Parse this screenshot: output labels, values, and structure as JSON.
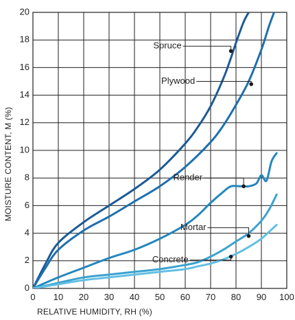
{
  "chart_data": {
    "type": "line",
    "xlabel": "RELATIVE HUMIDITY, RH (%)",
    "ylabel": "MOISTURE CONTENT, M (%)",
    "xlim": [
      0,
      100
    ],
    "ylim": [
      0,
      20
    ],
    "x_ticks": [
      "0",
      "10",
      "20",
      "30",
      "40",
      "50",
      "60",
      "70",
      "80",
      "90",
      "100"
    ],
    "y_ticks": [
      "0",
      "2",
      "4",
      "6",
      "8",
      "10",
      "12",
      "14",
      "16",
      "18",
      "20"
    ],
    "grid": true,
    "series": [
      {
        "name": "Spruce",
        "color": "#1b5a96",
        "x": [
          0,
          5,
          10,
          20,
          30,
          40,
          50,
          60,
          65,
          70,
          75,
          78,
          80,
          83,
          85
        ],
        "y": [
          0,
          1.8,
          3.3,
          4.8,
          6.0,
          7.2,
          8.6,
          10.5,
          11.7,
          13.2,
          15.2,
          16.7,
          17.8,
          19.3,
          20.0
        ]
      },
      {
        "name": "Plywood",
        "color": "#1d6fae",
        "x": [
          0,
          5,
          10,
          20,
          30,
          40,
          50,
          60,
          70,
          75,
          80,
          85,
          90,
          93,
          95
        ],
        "y": [
          0,
          1.5,
          2.8,
          4.2,
          5.2,
          6.3,
          7.4,
          8.8,
          10.6,
          11.8,
          13.3,
          15.0,
          17.3,
          19.0,
          20.0
        ]
      },
      {
        "name": "Render",
        "color": "#2487bd",
        "x": [
          0,
          10,
          20,
          30,
          40,
          50,
          60,
          65,
          70,
          75,
          78,
          82,
          85,
          88,
          90,
          92,
          94,
          96
        ],
        "y": [
          0,
          0.8,
          1.5,
          2.2,
          2.8,
          3.6,
          4.6,
          5.3,
          6.2,
          7.0,
          7.4,
          7.4,
          7.4,
          7.6,
          8.2,
          7.8,
          9.2,
          9.8
        ]
      },
      {
        "name": "Mortar",
        "color": "#3aa3d0",
        "x": [
          0,
          10,
          20,
          30,
          40,
          50,
          60,
          65,
          70,
          75,
          80,
          85,
          90,
          93,
          96
        ],
        "y": [
          0,
          0.4,
          0.8,
          1.0,
          1.2,
          1.4,
          1.7,
          1.9,
          2.3,
          2.8,
          3.4,
          4.0,
          4.9,
          5.7,
          6.8
        ]
      },
      {
        "name": "Concrete",
        "color": "#62bfe3",
        "x": [
          0,
          10,
          20,
          30,
          40,
          50,
          60,
          65,
          70,
          75,
          80,
          85,
          90,
          93,
          96
        ],
        "y": [
          0,
          0.3,
          0.6,
          0.8,
          1.0,
          1.2,
          1.4,
          1.6,
          1.8,
          2.1,
          2.5,
          3.0,
          3.6,
          4.1,
          4.6
        ]
      }
    ],
    "annotations": [
      {
        "text": "Spruce",
        "x": 78,
        "y": 17.2
      },
      {
        "text": "Plywood",
        "x": 86,
        "y": 14.8
      },
      {
        "text": "Render",
        "x": 83,
        "y": 7.4
      },
      {
        "text": "Mortar",
        "x": 85,
        "y": 3.8
      },
      {
        "text": "Concrete",
        "x": 78,
        "y": 2.3
      }
    ]
  }
}
